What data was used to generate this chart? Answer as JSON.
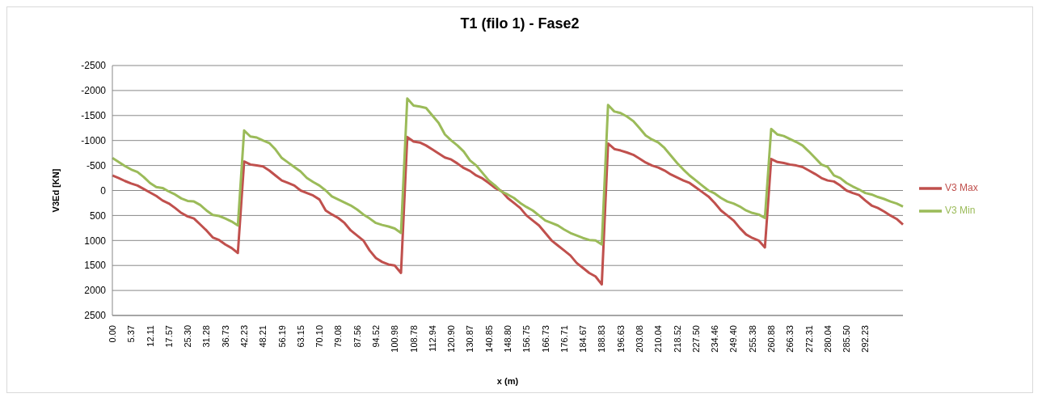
{
  "chart_data": {
    "type": "line",
    "title": "T1 (filo 1)  - Fase2",
    "xlabel": "x (m)",
    "ylabel": "V3Ed [KN]",
    "categories": [
      "0.00",
      null,
      null,
      "5.37",
      null,
      null,
      "12.11",
      null,
      null,
      "17.57",
      null,
      null,
      "25.30",
      null,
      null,
      "31.28",
      null,
      null,
      "36.73",
      null,
      null,
      "42.23",
      null,
      null,
      "48.21",
      null,
      null,
      "56.19",
      null,
      null,
      "63.15",
      null,
      null,
      "70.10",
      null,
      null,
      "79.08",
      null,
      null,
      "87.56",
      null,
      null,
      "94.52",
      null,
      null,
      "100.98",
      null,
      null,
      "108.78",
      null,
      null,
      "112.94",
      null,
      null,
      "120.90",
      null,
      null,
      "130.87",
      null,
      null,
      "140.85",
      null,
      null,
      "148.80",
      null,
      null,
      "156.75",
      null,
      null,
      "166.73",
      null,
      null,
      "176.71",
      null,
      null,
      "184.67",
      null,
      null,
      "188.83",
      null,
      null,
      "196.63",
      null,
      null,
      "203.08",
      null,
      null,
      "210.04",
      null,
      null,
      "218.52",
      null,
      null,
      "227.50",
      null,
      null,
      "234.46",
      null,
      null,
      "249.40",
      null,
      null,
      "255.38",
      null,
      null,
      "260.88",
      null,
      null,
      "266.33",
      null,
      null,
      "272.31",
      null,
      null,
      "280.04",
      null,
      null,
      "285.50",
      null,
      null,
      "292.23",
      null,
      null,
      null,
      null,
      null,
      null
    ],
    "series": [
      {
        "name": "V3 Max",
        "color": "#c0504d",
        "values": [
          -300,
          -250,
          -190,
          -140,
          -100,
          -30,
          40,
          110,
          200,
          260,
          350,
          450,
          520,
          560,
          680,
          800,
          940,
          990,
          1080,
          1150,
          1250,
          -580,
          -520,
          -500,
          -480,
          -400,
          -300,
          -200,
          -150,
          -100,
          0,
          50,
          100,
          180,
          400,
          480,
          550,
          650,
          800,
          900,
          1000,
          1200,
          1350,
          1430,
          1480,
          1500,
          1650,
          -1070,
          -980,
          -960,
          -900,
          -820,
          -740,
          -660,
          -620,
          -540,
          -450,
          -390,
          -300,
          -240,
          -150,
          -50,
          10,
          150,
          250,
          350,
          500,
          600,
          700,
          850,
          1000,
          1100,
          1200,
          1300,
          1450,
          1550,
          1650,
          1720,
          1880,
          -940,
          -830,
          -800,
          -760,
          -715,
          -640,
          -560,
          -500,
          -460,
          -400,
          -320,
          -260,
          -200,
          -150,
          -60,
          30,
          120,
          250,
          400,
          500,
          600,
          750,
          880,
          950,
          1000,
          1140,
          -630,
          -570,
          -550,
          -520,
          -500,
          -470,
          -400,
          -330,
          -250,
          -200,
          -180,
          -100,
          0,
          50,
          90,
          200,
          300,
          350,
          420,
          500,
          570,
          680
        ]
      },
      {
        "name": "V3 Min",
        "color": "#9bbb59",
        "values": [
          -650,
          -570,
          -490,
          -420,
          -370,
          -270,
          -150,
          -70,
          -50,
          20,
          80,
          160,
          210,
          220,
          290,
          400,
          490,
          510,
          560,
          620,
          700,
          -1200,
          -1080,
          -1060,
          -1000,
          -950,
          -820,
          -650,
          -560,
          -470,
          -380,
          -250,
          -170,
          -100,
          0,
          120,
          180,
          240,
          300,
          380,
          480,
          560,
          650,
          690,
          720,
          760,
          850,
          -1840,
          -1700,
          -1680,
          -1650,
          -1500,
          -1350,
          -1120,
          -1000,
          -900,
          -780,
          -600,
          -500,
          -350,
          -200,
          -100,
          20,
          80,
          150,
          250,
          330,
          400,
          500,
          600,
          650,
          700,
          780,
          850,
          900,
          950,
          990,
          1000,
          1080,
          -1710,
          -1580,
          -1550,
          -1480,
          -1390,
          -1250,
          -1100,
          -1020,
          -960,
          -850,
          -700,
          -550,
          -420,
          -300,
          -200,
          -100,
          0,
          60,
          150,
          220,
          260,
          320,
          400,
          450,
          480,
          550,
          -1230,
          -1120,
          -1090,
          -1030,
          -970,
          -900,
          -780,
          -650,
          -520,
          -470,
          -300,
          -250,
          -150,
          -80,
          -20,
          50,
          80,
          130,
          170,
          220,
          260,
          320
        ]
      }
    ],
    "ylim": [
      2500,
      -2500
    ],
    "yticks": [
      -2500,
      -2000,
      -1500,
      -1000,
      -500,
      0,
      500,
      1000,
      1500,
      2000,
      2500
    ],
    "grid": "y",
    "legend": "right",
    "marker": "none",
    "line_style": "solid"
  }
}
